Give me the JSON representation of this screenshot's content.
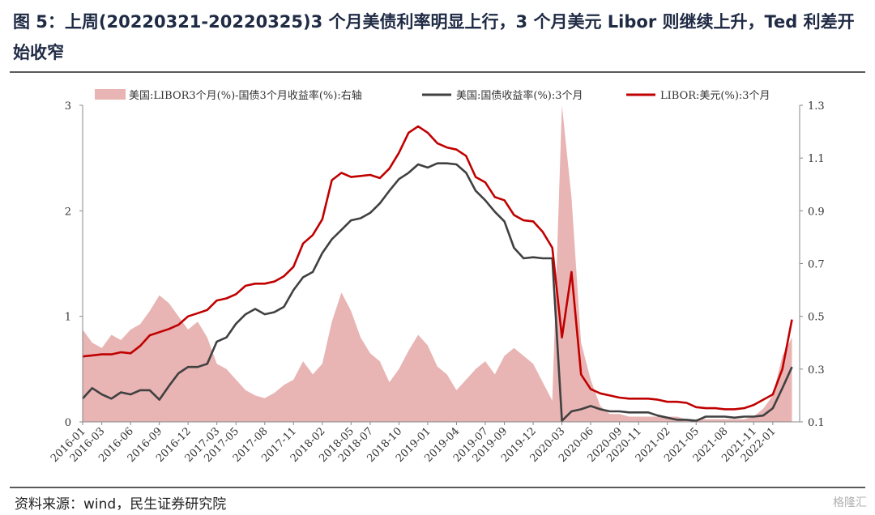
{
  "header": {
    "title": "图 5：上周(20220321-20220325)3 个月美债利率明显上行，3 个月美元 Libor 则继续上升，Ted 利差开始收窄"
  },
  "footer": {
    "source": "资料来源：wind，民生证券研究院",
    "watermark": "格隆汇"
  },
  "chart_data": {
    "type": "line",
    "title": "",
    "legend_position": "top",
    "grid": false,
    "x_start": "2016-01",
    "x_end": "2022-03",
    "x_ticks": [
      "2016-01",
      "2016-03",
      "2016-06",
      "2016-09",
      "2016-12",
      "2017-03",
      "2017-05",
      "2017-08",
      "2017-11",
      "2018-02",
      "2018-05",
      "2018-07",
      "2018-10",
      "2019-01",
      "2019-04",
      "2019-07",
      "2019-09",
      "2019-12",
      "2020-03",
      "2020-06",
      "2020-09",
      "2020-11",
      "2021-02",
      "2021-05",
      "2021-08",
      "2021-11",
      "2022-01"
    ],
    "y_left": {
      "ticks": [
        "0",
        "1",
        "2",
        "3"
      ],
      "range": [
        0,
        3
      ]
    },
    "y_right": {
      "ticks": [
        "0.1",
        "0.3",
        "0.5",
        "0.7",
        "0.9",
        "1.1",
        "1.3"
      ],
      "range": [
        0.1,
        1.3
      ]
    },
    "series": [
      {
        "name": "美国:LIBOR3个月(%)-国债3个月收益率(%):右轴",
        "kind": "area",
        "axis": "right",
        "color": "#e8b4b4",
        "points": [
          [
            "2016-01",
            0.45
          ],
          [
            "2016-02",
            0.4
          ],
          [
            "2016-03",
            0.38
          ],
          [
            "2016-04",
            0.43
          ],
          [
            "2016-05",
            0.41
          ],
          [
            "2016-06",
            0.45
          ],
          [
            "2016-07",
            0.47
          ],
          [
            "2016-08",
            0.52
          ],
          [
            "2016-09",
            0.58
          ],
          [
            "2016-10",
            0.55
          ],
          [
            "2016-11",
            0.5
          ],
          [
            "2016-12",
            0.45
          ],
          [
            "2017-01",
            0.48
          ],
          [
            "2017-02",
            0.42
          ],
          [
            "2017-03",
            0.32
          ],
          [
            "2017-04",
            0.3
          ],
          [
            "2017-05",
            0.26
          ],
          [
            "2017-06",
            0.22
          ],
          [
            "2017-07",
            0.2
          ],
          [
            "2017-08",
            0.19
          ],
          [
            "2017-09",
            0.21
          ],
          [
            "2017-10",
            0.24
          ],
          [
            "2017-11",
            0.26
          ],
          [
            "2017-12",
            0.33
          ],
          [
            "2018-01",
            0.28
          ],
          [
            "2018-02",
            0.32
          ],
          [
            "2018-03",
            0.48
          ],
          [
            "2018-04",
            0.59
          ],
          [
            "2018-05",
            0.52
          ],
          [
            "2018-06",
            0.42
          ],
          [
            "2018-07",
            0.36
          ],
          [
            "2018-08",
            0.33
          ],
          [
            "2018-09",
            0.25
          ],
          [
            "2018-10",
            0.3
          ],
          [
            "2018-11",
            0.37
          ],
          [
            "2018-12",
            0.43
          ],
          [
            "2019-01",
            0.39
          ],
          [
            "2019-02",
            0.31
          ],
          [
            "2019-03",
            0.28
          ],
          [
            "2019-04",
            0.22
          ],
          [
            "2019-05",
            0.26
          ],
          [
            "2019-06",
            0.3
          ],
          [
            "2019-07",
            0.33
          ],
          [
            "2019-08",
            0.28
          ],
          [
            "2019-09",
            0.35
          ],
          [
            "2019-10",
            0.38
          ],
          [
            "2019-11",
            0.35
          ],
          [
            "2019-12",
            0.32
          ],
          [
            "2020-01",
            0.25
          ],
          [
            "2020-02",
            0.18
          ],
          [
            "2020-03",
            1.3
          ],
          [
            "2020-04",
            0.95
          ],
          [
            "2020-05",
            0.4
          ],
          [
            "2020-06",
            0.26
          ],
          [
            "2020-07",
            0.16
          ],
          [
            "2020-08",
            0.13
          ],
          [
            "2020-09",
            0.13
          ],
          [
            "2020-10",
            0.12
          ],
          [
            "2020-11",
            0.12
          ],
          [
            "2020-12",
            0.12
          ],
          [
            "2021-01",
            0.12
          ],
          [
            "2021-02",
            0.12
          ],
          [
            "2021-03",
            0.12
          ],
          [
            "2021-04",
            0.11
          ],
          [
            "2021-05",
            0.11
          ],
          [
            "2021-06",
            0.11
          ],
          [
            "2021-07",
            0.11
          ],
          [
            "2021-08",
            0.11
          ],
          [
            "2021-09",
            0.11
          ],
          [
            "2021-10",
            0.11
          ],
          [
            "2021-11",
            0.12
          ],
          [
            "2021-12",
            0.15
          ],
          [
            "2022-01",
            0.2
          ],
          [
            "2022-02",
            0.35
          ],
          [
            "2022-03",
            0.42
          ]
        ]
      },
      {
        "name": "美国:国债收益率(%):3个月",
        "kind": "line",
        "axis": "left",
        "color": "#404040",
        "points": [
          [
            "2016-01",
            0.22
          ],
          [
            "2016-02",
            0.32
          ],
          [
            "2016-03",
            0.26
          ],
          [
            "2016-04",
            0.22
          ],
          [
            "2016-05",
            0.28
          ],
          [
            "2016-06",
            0.26
          ],
          [
            "2016-07",
            0.3
          ],
          [
            "2016-08",
            0.3
          ],
          [
            "2016-09",
            0.21
          ],
          [
            "2016-10",
            0.34
          ],
          [
            "2016-11",
            0.46
          ],
          [
            "2016-12",
            0.52
          ],
          [
            "2017-01",
            0.52
          ],
          [
            "2017-02",
            0.55
          ],
          [
            "2017-03",
            0.76
          ],
          [
            "2017-04",
            0.8
          ],
          [
            "2017-05",
            0.93
          ],
          [
            "2017-06",
            1.02
          ],
          [
            "2017-07",
            1.07
          ],
          [
            "2017-08",
            1.02
          ],
          [
            "2017-09",
            1.04
          ],
          [
            "2017-10",
            1.09
          ],
          [
            "2017-11",
            1.25
          ],
          [
            "2017-12",
            1.37
          ],
          [
            "2018-01",
            1.42
          ],
          [
            "2018-02",
            1.6
          ],
          [
            "2018-03",
            1.73
          ],
          [
            "2018-04",
            1.82
          ],
          [
            "2018-05",
            1.91
          ],
          [
            "2018-06",
            1.93
          ],
          [
            "2018-07",
            1.98
          ],
          [
            "2018-08",
            2.07
          ],
          [
            "2018-09",
            2.19
          ],
          [
            "2018-10",
            2.3
          ],
          [
            "2018-11",
            2.36
          ],
          [
            "2018-12",
            2.44
          ],
          [
            "2019-01",
            2.41
          ],
          [
            "2019-02",
            2.45
          ],
          [
            "2019-03",
            2.45
          ],
          [
            "2019-04",
            2.44
          ],
          [
            "2019-05",
            2.36
          ],
          [
            "2019-06",
            2.19
          ],
          [
            "2019-07",
            2.1
          ],
          [
            "2019-08",
            1.99
          ],
          [
            "2019-09",
            1.9
          ],
          [
            "2019-10",
            1.65
          ],
          [
            "2019-11",
            1.55
          ],
          [
            "2019-12",
            1.56
          ],
          [
            "2020-01",
            1.55
          ],
          [
            "2020-02",
            1.55
          ],
          [
            "2020-03",
            0.01
          ],
          [
            "2020-04",
            0.1
          ],
          [
            "2020-05",
            0.12
          ],
          [
            "2020-06",
            0.15
          ],
          [
            "2020-07",
            0.12
          ],
          [
            "2020-08",
            0.1
          ],
          [
            "2020-09",
            0.1
          ],
          [
            "2020-10",
            0.09
          ],
          [
            "2020-11",
            0.09
          ],
          [
            "2020-12",
            0.09
          ],
          [
            "2021-01",
            0.06
          ],
          [
            "2021-02",
            0.04
          ],
          [
            "2021-03",
            0.02
          ],
          [
            "2021-04",
            0.02
          ],
          [
            "2021-05",
            0.01
          ],
          [
            "2021-06",
            0.05
          ],
          [
            "2021-07",
            0.05
          ],
          [
            "2021-08",
            0.05
          ],
          [
            "2021-09",
            0.04
          ],
          [
            "2021-10",
            0.05
          ],
          [
            "2021-11",
            0.05
          ],
          [
            "2021-12",
            0.06
          ],
          [
            "2022-01",
            0.13
          ],
          [
            "2022-02",
            0.32
          ],
          [
            "2022-03",
            0.52
          ]
        ]
      },
      {
        "name": "LIBOR:美元(%):3个月",
        "kind": "line",
        "axis": "left",
        "color": "#c00000",
        "points": [
          [
            "2016-01",
            0.62
          ],
          [
            "2016-02",
            0.63
          ],
          [
            "2016-03",
            0.64
          ],
          [
            "2016-04",
            0.64
          ],
          [
            "2016-05",
            0.66
          ],
          [
            "2016-06",
            0.65
          ],
          [
            "2016-07",
            0.72
          ],
          [
            "2016-08",
            0.82
          ],
          [
            "2016-09",
            0.85
          ],
          [
            "2016-10",
            0.88
          ],
          [
            "2016-11",
            0.92
          ],
          [
            "2016-12",
            1.0
          ],
          [
            "2017-01",
            1.03
          ],
          [
            "2017-02",
            1.06
          ],
          [
            "2017-03",
            1.15
          ],
          [
            "2017-04",
            1.17
          ],
          [
            "2017-05",
            1.21
          ],
          [
            "2017-06",
            1.29
          ],
          [
            "2017-07",
            1.31
          ],
          [
            "2017-08",
            1.31
          ],
          [
            "2017-09",
            1.33
          ],
          [
            "2017-10",
            1.38
          ],
          [
            "2017-11",
            1.47
          ],
          [
            "2017-12",
            1.69
          ],
          [
            "2018-01",
            1.77
          ],
          [
            "2018-02",
            1.92
          ],
          [
            "2018-03",
            2.29
          ],
          [
            "2018-04",
            2.36
          ],
          [
            "2018-05",
            2.32
          ],
          [
            "2018-06",
            2.33
          ],
          [
            "2018-07",
            2.34
          ],
          [
            "2018-08",
            2.31
          ],
          [
            "2018-09",
            2.4
          ],
          [
            "2018-10",
            2.55
          ],
          [
            "2018-11",
            2.74
          ],
          [
            "2018-12",
            2.8
          ],
          [
            "2019-01",
            2.74
          ],
          [
            "2019-02",
            2.64
          ],
          [
            "2019-03",
            2.6
          ],
          [
            "2019-04",
            2.58
          ],
          [
            "2019-05",
            2.52
          ],
          [
            "2019-06",
            2.32
          ],
          [
            "2019-07",
            2.27
          ],
          [
            "2019-08",
            2.13
          ],
          [
            "2019-09",
            2.1
          ],
          [
            "2019-10",
            1.96
          ],
          [
            "2019-11",
            1.91
          ],
          [
            "2019-12",
            1.9
          ],
          [
            "2020-01",
            1.8
          ],
          [
            "2020-02",
            1.65
          ],
          [
            "2020-03",
            0.8
          ],
          [
            "2020-04",
            1.42
          ],
          [
            "2020-05",
            0.45
          ],
          [
            "2020-06",
            0.31
          ],
          [
            "2020-07",
            0.27
          ],
          [
            "2020-08",
            0.25
          ],
          [
            "2020-09",
            0.23
          ],
          [
            "2020-10",
            0.22
          ],
          [
            "2020-11",
            0.22
          ],
          [
            "2020-12",
            0.22
          ],
          [
            "2021-01",
            0.21
          ],
          [
            "2021-02",
            0.19
          ],
          [
            "2021-03",
            0.19
          ],
          [
            "2021-04",
            0.18
          ],
          [
            "2021-05",
            0.14
          ],
          [
            "2021-06",
            0.13
          ],
          [
            "2021-07",
            0.13
          ],
          [
            "2021-08",
            0.12
          ],
          [
            "2021-09",
            0.12
          ],
          [
            "2021-10",
            0.13
          ],
          [
            "2021-11",
            0.16
          ],
          [
            "2021-12",
            0.21
          ],
          [
            "2022-01",
            0.26
          ],
          [
            "2022-02",
            0.5
          ],
          [
            "2022-03",
            0.97
          ]
        ]
      }
    ]
  }
}
